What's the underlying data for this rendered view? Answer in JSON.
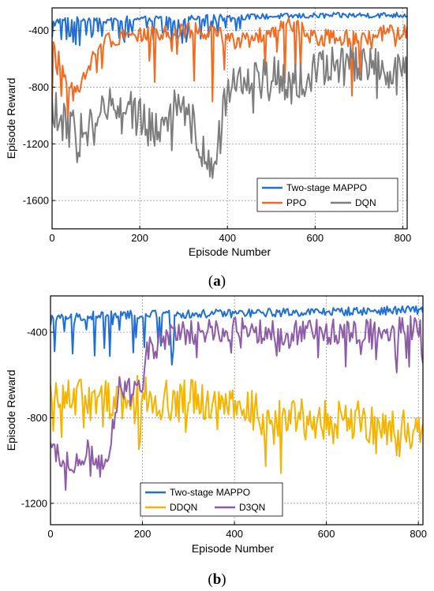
{
  "chart_data": [
    {
      "id": "a",
      "type": "line",
      "caption": "a",
      "xlabel": "Episode Number",
      "ylabel": "Episode Reward",
      "xlim": [
        0,
        810
      ],
      "ylim": [
        -1800,
        -240
      ],
      "xticks": [
        0,
        200,
        400,
        600,
        800
      ],
      "yticks": [
        -1600,
        -1200,
        -800,
        -400
      ],
      "grid": true,
      "legend": "bottom-right",
      "legend_layout": [
        [
          "Two-stage MAPPO"
        ],
        [
          "PPO",
          "DQN"
        ]
      ],
      "series": [
        {
          "name": "Two-stage MAPPO",
          "color": "#1f6fd6",
          "knots": [
            [
              0,
              -330
            ],
            [
              100,
              -320
            ],
            [
              200,
              -318
            ],
            [
              300,
              -312
            ],
            [
              400,
              -305
            ],
            [
              500,
              -300
            ],
            [
              600,
              -296
            ],
            [
              700,
              -292
            ],
            [
              810,
              -290
            ]
          ],
          "amp": 20,
          "spike_prob": 0.35,
          "spike_depth": 170,
          "spike_until": 430
        },
        {
          "name": "PPO",
          "color": "#f26b21",
          "knots": [
            [
              0,
              -450
            ],
            [
              20,
              -650
            ],
            [
              50,
              -850
            ],
            [
              80,
              -700
            ],
            [
              100,
              -500
            ],
            [
              160,
              -430
            ],
            [
              250,
              -420
            ],
            [
              300,
              -400
            ],
            [
              350,
              -400
            ],
            [
              420,
              -480
            ],
            [
              460,
              -450
            ],
            [
              550,
              -360
            ],
            [
              600,
              -450
            ],
            [
              700,
              -450
            ],
            [
              760,
              -420
            ],
            [
              810,
              -400
            ]
          ],
          "amp": 60,
          "spike_prob": 0.12,
          "spike_depth": 500
        },
        {
          "name": "DQN",
          "color": "#7d7d7d",
          "knots": [
            [
              0,
              -950
            ],
            [
              60,
              -1150
            ],
            [
              100,
              -1050
            ],
            [
              150,
              -900
            ],
            [
              200,
              -1000
            ],
            [
              230,
              -1100
            ],
            [
              270,
              -950
            ],
            [
              320,
              -1050
            ],
            [
              350,
              -1300
            ],
            [
              370,
              -1400
            ],
            [
              385,
              -1100
            ],
            [
              400,
              -800
            ],
            [
              450,
              -750
            ],
            [
              500,
              -720
            ],
            [
              550,
              -800
            ],
            [
              600,
              -680
            ],
            [
              650,
              -650
            ],
            [
              700,
              -620
            ],
            [
              750,
              -680
            ],
            [
              810,
              -720
            ]
          ],
          "amp": 150,
          "spike_prob": 0.06,
          "spike_depth": 250
        }
      ]
    },
    {
      "id": "b",
      "type": "line",
      "caption": "b",
      "xlabel": "Episode Number",
      "ylabel": "Episode Reward",
      "xlim": [
        0,
        810
      ],
      "ylim": [
        -1300,
        -230
      ],
      "xticks": [
        0,
        200,
        400,
        600,
        800
      ],
      "yticks": [
        -1200,
        -800,
        -400
      ],
      "grid": true,
      "legend": "bottom-right",
      "legend_layout": [
        [
          "Two-stage MAPPO"
        ],
        [
          "DDQN",
          "D3QN"
        ]
      ],
      "series": [
        {
          "name": "Two-stage MAPPO",
          "color": "#1f6fd6",
          "knots": [
            [
              0,
              -340
            ],
            [
              50,
              -330
            ],
            [
              100,
              -320
            ],
            [
              300,
              -315
            ],
            [
              500,
              -308
            ],
            [
              700,
              -300
            ],
            [
              810,
              -295
            ]
          ],
          "amp": 20,
          "spike_prob": 0.3,
          "spike_depth": 220,
          "spike_until": 280
        },
        {
          "name": "DDQN",
          "color": "#f5b400",
          "knots": [
            [
              0,
              -700
            ],
            [
              100,
              -720
            ],
            [
              200,
              -700
            ],
            [
              300,
              -720
            ],
            [
              400,
              -730
            ],
            [
              450,
              -780
            ],
            [
              500,
              -820
            ],
            [
              600,
              -800
            ],
            [
              700,
              -830
            ],
            [
              810,
              -850
            ]
          ],
          "amp": 100,
          "spike_prob": 0.08,
          "spike_depth": 200
        },
        {
          "name": "D3QN",
          "color": "#8e5ba8",
          "knots": [
            [
              0,
              -950
            ],
            [
              50,
              -1000
            ],
            [
              80,
              -950
            ],
            [
              120,
              -1050
            ],
            [
              150,
              -650
            ],
            [
              180,
              -600
            ],
            [
              200,
              -650
            ],
            [
              210,
              -480
            ],
            [
              250,
              -430
            ],
            [
              300,
              -400
            ],
            [
              400,
              -390
            ],
            [
              500,
              -400
            ],
            [
              600,
              -400
            ],
            [
              700,
              -390
            ],
            [
              810,
              -380
            ]
          ],
          "amp": 60,
          "spike_prob": 0.18,
          "spike_depth": 180
        }
      ]
    }
  ]
}
